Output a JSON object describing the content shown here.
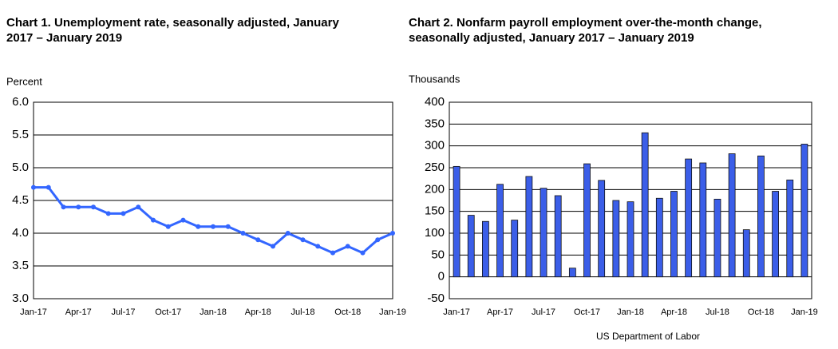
{
  "chart_data": [
    {
      "type": "line",
      "title": "Chart 1. Unemployment rate, seasonally adjusted, January 2017 – January 2019",
      "y_label": "Percent",
      "color": "#3366ff",
      "grid": true,
      "categories": [
        "Jan-17",
        null,
        null,
        "Apr-17",
        null,
        null,
        "Jul-17",
        null,
        null,
        "Oct-17",
        null,
        null,
        "Jan-18",
        null,
        null,
        "Apr-18",
        null,
        null,
        "Jul-18",
        null,
        null,
        "Oct-18",
        null,
        null,
        "Jan-19"
      ],
      "values": [
        4.7,
        4.7,
        4.4,
        4.4,
        4.4,
        4.3,
        4.3,
        4.4,
        4.2,
        4.1,
        4.2,
        4.1,
        4.1,
        4.1,
        4.0,
        3.9,
        3.8,
        4.0,
        3.9,
        3.8,
        3.7,
        3.8,
        3.7,
        3.9,
        4.0
      ],
      "ylim": [
        3,
        6
      ],
      "yticks": [
        {
          "value": 3,
          "label": "3.0"
        },
        {
          "value": 3.5,
          "label": "3.5"
        },
        {
          "value": 4,
          "label": "4.0"
        },
        {
          "value": 4.5,
          "label": "4.5"
        },
        {
          "value": 5,
          "label": "5.0"
        },
        {
          "value": 5.5,
          "label": "5.5"
        },
        {
          "value": 6,
          "label": "6.0"
        }
      ]
    },
    {
      "type": "bar",
      "title": "Chart 2. Nonfarm payroll employment over-the-month change, seasonally adjusted, January 2017 – January 2019",
      "y_label": "Thousands",
      "color": "#3b5ee8",
      "grid": true,
      "categories": [
        "Jan-17",
        null,
        null,
        "Apr-17",
        null,
        null,
        "Jul-17",
        null,
        null,
        "Oct-17",
        null,
        null,
        "Jan-18",
        null,
        null,
        "Apr-18",
        null,
        null,
        "Jul-18",
        null,
        null,
        "Oct-18",
        null,
        null,
        "Jan-19"
      ],
      "values": [
        253,
        141,
        127,
        212,
        130,
        230,
        203,
        186,
        20,
        259,
        221,
        175,
        172,
        330,
        180,
        196,
        270,
        261,
        178,
        282,
        108,
        277,
        196,
        222,
        304
      ],
      "ylim": [
        -50,
        400
      ],
      "yticks": [
        -50,
        0,
        50,
        100,
        150,
        200,
        250,
        300,
        350,
        400
      ]
    }
  ],
  "footer": "US Department of Labor"
}
